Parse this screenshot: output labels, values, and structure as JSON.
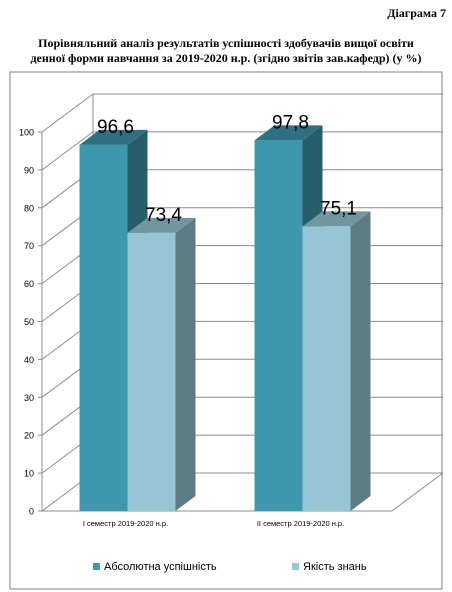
{
  "page": {
    "diagram_label": "Діаграма 7",
    "title_line1": "Порівняльний аналіз результатів успішності здобувачів вищої освіти",
    "title_line2": "денної форми навчання за 2019-2020 н.р. (згідно звітів зав.кафедр) (у %)"
  },
  "chart_data": {
    "type": "bar",
    "categories": [
      "I семестр  2019-2020 н.р.",
      "II семестр  2019-2020 н.р."
    ],
    "series": [
      {
        "name": "Абсолютна успішність",
        "values": [
          96.6,
          97.8
        ],
        "labels": [
          "96,6",
          "97,8"
        ],
        "color": "#3e97ad"
      },
      {
        "name": "Якість знань",
        "values": [
          73.4,
          75.1
        ],
        "labels": [
          "73,4",
          "75,1"
        ],
        "color": "#96c6d6"
      }
    ],
    "yticks": [
      "0",
      "10",
      "20",
      "30",
      "40",
      "50",
      "60",
      "70",
      "80",
      "90",
      "100"
    ],
    "ylim": [
      0,
      100
    ],
    "grid": true,
    "three_d": true,
    "legend_position": "bottom",
    "colors": {
      "frame": "#7f7f7f",
      "grid": "#8c8c8c"
    }
  }
}
